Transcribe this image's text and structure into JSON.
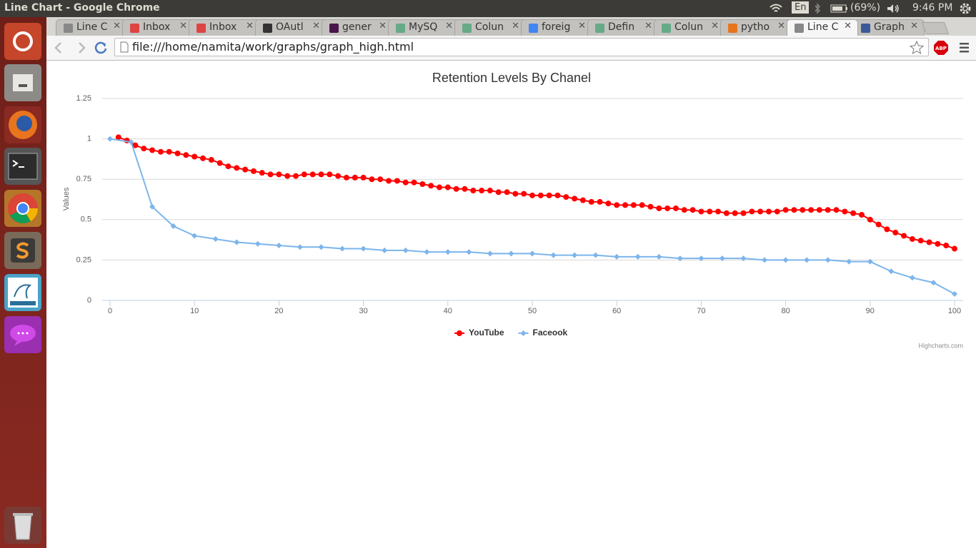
{
  "window": {
    "title": "Line Chart - Google Chrome",
    "keyboard": "En",
    "battery": "(69%)",
    "clock": "9:46 PM"
  },
  "tabs": [
    "Line C",
    "Inbox",
    "Inbox",
    "OAutl",
    "gener",
    "MySQ",
    "Colun",
    "foreig",
    "Defin",
    "Colun",
    "pytho",
    "Line C",
    "Graph"
  ],
  "toolbar": {
    "url": "file:///home/namita/work/graphs/graph_high.html",
    "adblock": "ABP"
  },
  "chart_data": {
    "type": "line",
    "title": "Retention Levels By Chanel",
    "y_label": "Values",
    "credits": "Highcharts.com",
    "xlim": [
      -1,
      101
    ],
    "xticks": [
      0,
      10,
      20,
      30,
      40,
      50,
      60,
      70,
      80,
      90,
      100
    ],
    "ylim": [
      0,
      1.25
    ],
    "yticks": [
      0,
      0.25,
      0.5,
      0.75,
      1,
      1.25
    ],
    "grid": true,
    "series": [
      {
        "name": "YouTube",
        "color": "#ff0000",
        "marker": "circle",
        "x": [
          1,
          2,
          3,
          4,
          5,
          6,
          7,
          8,
          9,
          10,
          11,
          12,
          13,
          14,
          15,
          16,
          17,
          18,
          19,
          20,
          21,
          22,
          23,
          24,
          25,
          26,
          27,
          28,
          29,
          30,
          31,
          32,
          33,
          34,
          35,
          36,
          37,
          38,
          39,
          40,
          41,
          42,
          43,
          44,
          45,
          46,
          47,
          48,
          49,
          50,
          51,
          52,
          53,
          54,
          55,
          56,
          57,
          58,
          59,
          60,
          61,
          62,
          63,
          64,
          65,
          66,
          67,
          68,
          69,
          70,
          71,
          72,
          73,
          74,
          75,
          76,
          77,
          78,
          79,
          80,
          81,
          82,
          83,
          84,
          85,
          86,
          87,
          88,
          89,
          90,
          91,
          92,
          93,
          94,
          95,
          96,
          97,
          98,
          99,
          100
        ],
        "values": [
          1.01,
          0.99,
          0.96,
          0.94,
          0.93,
          0.92,
          0.92,
          0.91,
          0.9,
          0.89,
          0.88,
          0.87,
          0.85,
          0.83,
          0.82,
          0.81,
          0.8,
          0.79,
          0.78,
          0.78,
          0.77,
          0.77,
          0.78,
          0.78,
          0.78,
          0.78,
          0.77,
          0.76,
          0.76,
          0.76,
          0.75,
          0.75,
          0.74,
          0.74,
          0.73,
          0.73,
          0.72,
          0.71,
          0.7,
          0.7,
          0.69,
          0.69,
          0.68,
          0.68,
          0.68,
          0.67,
          0.67,
          0.66,
          0.66,
          0.65,
          0.65,
          0.65,
          0.65,
          0.64,
          0.63,
          0.62,
          0.61,
          0.61,
          0.6,
          0.59,
          0.59,
          0.59,
          0.59,
          0.58,
          0.57,
          0.57,
          0.57,
          0.56,
          0.56,
          0.55,
          0.55,
          0.55,
          0.54,
          0.54,
          0.54,
          0.55,
          0.55,
          0.55,
          0.55,
          0.56,
          0.56,
          0.56,
          0.56,
          0.56,
          0.56,
          0.56,
          0.55,
          0.54,
          0.53,
          0.5,
          0.47,
          0.44,
          0.42,
          0.4,
          0.38,
          0.37,
          0.36,
          0.35,
          0.34,
          0.32
        ]
      },
      {
        "name": "Faceook",
        "color": "#7cb5ec",
        "marker": "diamond",
        "x": [
          0,
          2.5,
          5,
          7.5,
          10,
          12.5,
          15,
          17.5,
          20,
          22.5,
          25,
          27.5,
          30,
          32.5,
          35,
          37.5,
          40,
          42.5,
          45,
          47.5,
          50,
          52.5,
          55,
          57.5,
          60,
          62.5,
          65,
          67.5,
          70,
          72.5,
          75,
          77.5,
          80,
          82.5,
          85,
          87.5,
          90,
          92.5,
          95,
          97.5,
          100
        ],
        "values": [
          1,
          0.98,
          0.58,
          0.46,
          0.4,
          0.38,
          0.36,
          0.35,
          0.34,
          0.33,
          0.33,
          0.32,
          0.32,
          0.31,
          0.31,
          0.3,
          0.3,
          0.3,
          0.29,
          0.29,
          0.29,
          0.28,
          0.28,
          0.28,
          0.27,
          0.27,
          0.27,
          0.26,
          0.26,
          0.26,
          0.26,
          0.25,
          0.25,
          0.25,
          0.25,
          0.24,
          0.24,
          0.18,
          0.14,
          0.11,
          0.04
        ]
      }
    ]
  }
}
